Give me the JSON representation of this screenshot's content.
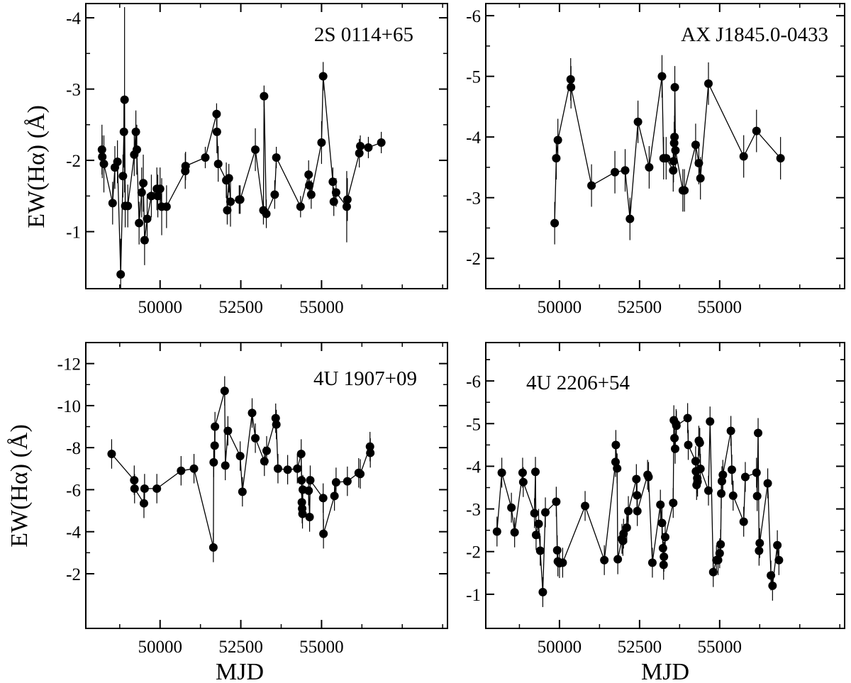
{
  "figure": {
    "ylabel": "EW(Hα) (Å)",
    "xlabel": "MJD"
  },
  "chart_data": [
    {
      "type": "line",
      "title": "2S 0114+65",
      "xlabel": "",
      "ylabel": "EW(Hα) (Å)",
      "xlim": [
        47700,
        58900
      ],
      "ylim": [
        -0.2,
        -4.2
      ],
      "y_inverted": true,
      "xticks": [
        50000,
        52500,
        55000
      ],
      "xtick_labels": [
        "50000",
        "52500",
        "55000"
      ],
      "yticks": [
        -1,
        -2,
        -3,
        -4
      ],
      "ytick_labels": [
        "-1",
        "-2",
        "-3",
        "-4"
      ],
      "series": [
        {
          "x": [
            48200,
            48210,
            48260,
            48530,
            48600,
            48680,
            48780,
            48850,
            48880,
            48900,
            48920,
            49000,
            49200,
            49250,
            49280,
            49350,
            49430,
            49480,
            49520,
            49600,
            49730,
            49900,
            49930,
            50000,
            50050,
            50200,
            50780,
            50790,
            51400,
            51750,
            51760,
            51800,
            52050,
            52080,
            52130,
            52180,
            52450,
            52480,
            52950,
            53200,
            53220,
            53290,
            53550,
            53600,
            54350,
            54600,
            54620,
            54680,
            55000,
            55050,
            55350,
            55380,
            55450,
            55780,
            55800,
            56170,
            56200,
            56450,
            56850
          ],
          "y": [
            -2.15,
            -2.05,
            -1.95,
            -1.4,
            -1.9,
            -1.98,
            -0.4,
            -1.78,
            -2.4,
            -2.85,
            -1.36,
            -1.36,
            -2.08,
            -2.4,
            -2.15,
            -1.12,
            -1.55,
            -1.68,
            -0.88,
            -1.18,
            -1.5,
            -1.6,
            -1.5,
            -1.6,
            -1.35,
            -1.35,
            -1.85,
            -1.92,
            -2.04,
            -2.65,
            -2.4,
            -1.95,
            -1.72,
            -1.3,
            -1.75,
            -1.42,
            -1.45,
            -1.45,
            -2.15,
            -1.3,
            -2.9,
            -1.25,
            -1.52,
            -2.04,
            -1.35,
            -1.8,
            -1.65,
            -1.52,
            -2.25,
            -3.18,
            -1.7,
            -1.42,
            -1.55,
            -1.35,
            -1.45,
            -2.1,
            -2.2,
            -2.18,
            -2.25
          ],
          "err": [
            0.35,
            0.3,
            0.4,
            0.3,
            0.3,
            0.3,
            0.5,
            0.3,
            0.5,
            1.3,
            0.3,
            0.3,
            0.3,
            0.3,
            0.35,
            0.3,
            0.35,
            0.4,
            0.35,
            0.35,
            0.3,
            0.3,
            0.3,
            0.3,
            0.4,
            0.3,
            0.25,
            0.2,
            0.15,
            0.15,
            0.3,
            0.25,
            0.25,
            0.2,
            0.2,
            0.35,
            0.2,
            0.2,
            0.3,
            0.2,
            0.15,
            0.2,
            0.2,
            0.15,
            0.15,
            0.2,
            0.2,
            0.2,
            0.3,
            0.2,
            0.2,
            0.2,
            0.2,
            0.5,
            0.3,
            0.2,
            0.15,
            0.15,
            0.15
          ]
        }
      ]
    },
    {
      "type": "line",
      "title": "AX J1845.0-0433",
      "xlabel": "",
      "ylabel": "",
      "xlim": [
        47700,
        58900
      ],
      "ylim": [
        -1.5,
        -6.2
      ],
      "y_inverted": true,
      "xticks": [
        50000,
        52500,
        55000
      ],
      "xtick_labels": [
        "50000",
        "52500",
        "55000"
      ],
      "yticks": [
        -2,
        -3,
        -4,
        -5,
        -6
      ],
      "ytick_labels": [
        "-2",
        "-3",
        "-4",
        "-5",
        "-6"
      ],
      "series": [
        {
          "x": [
            49850,
            49900,
            49950,
            50350,
            50360,
            51000,
            51730,
            52050,
            52200,
            52450,
            52800,
            53200,
            53250,
            53330,
            53550,
            53560,
            53580,
            53590,
            53600,
            53620,
            53850,
            53900,
            54250,
            54350,
            54400,
            54650,
            55750,
            56150,
            56900
          ],
          "y": [
            -2.58,
            -3.65,
            -3.95,
            -4.95,
            -4.82,
            -3.2,
            -3.42,
            -3.45,
            -2.65,
            -4.25,
            -3.5,
            -5.0,
            -3.65,
            -3.65,
            -3.45,
            -3.6,
            -3.9,
            -4.0,
            -4.82,
            -3.78,
            -3.12,
            -3.12,
            -3.87,
            -3.57,
            -3.32,
            -4.88,
            -3.68,
            -4.1,
            -3.65
          ]
        }
      ]
    },
    {
      "type": "line",
      "title": "4U 1907+09",
      "xlabel": "MJD",
      "ylabel": "EW(Hα) (Å)",
      "xlim": [
        47700,
        58900
      ],
      "ylim": [
        0.6,
        -13.0
      ],
      "y_inverted": true,
      "xticks": [
        50000,
        52500,
        55000
      ],
      "xtick_labels": [
        "50000",
        "52500",
        "55000"
      ],
      "yticks": [
        -2,
        -4,
        -6,
        -8,
        -10,
        -12
      ],
      "ytick_labels": [
        "-2",
        "-4",
        "-6",
        "-8",
        "-10",
        "-12"
      ],
      "series": [
        {
          "x": [
            48500,
            49200,
            49210,
            49500,
            49520,
            49900,
            50650,
            51050,
            51650,
            51660,
            51690,
            51700,
            52000,
            52020,
            52100,
            52480,
            52550,
            52850,
            52950,
            53230,
            53300,
            53580,
            53600,
            53650,
            53950,
            54250,
            54370,
            54380,
            54390,
            54400,
            54410,
            54420,
            54600,
            54630,
            54650,
            55050,
            55060,
            55400,
            55450,
            55800,
            56150,
            56200,
            56500,
            56510
          ],
          "y": [
            -7.7,
            -6.45,
            -6.05,
            -5.35,
            -6.05,
            -6.05,
            -6.9,
            -7.0,
            -3.25,
            -7.3,
            -8.1,
            -9.0,
            -10.7,
            -7.15,
            -8.8,
            -7.6,
            -5.9,
            -9.65,
            -8.45,
            -7.35,
            -7.85,
            -9.4,
            -9.1,
            -7.0,
            -6.95,
            -7.0,
            -7.7,
            -6.45,
            -5.4,
            -5.1,
            -4.85,
            -6.0,
            -5.95,
            -4.7,
            -6.45,
            -5.6,
            -3.9,
            -5.7,
            -6.35,
            -6.4,
            -6.8,
            -6.75,
            -8.05,
            -7.75
          ]
        }
      ]
    },
    {
      "type": "line",
      "title": "4U 2206+54",
      "xlabel": "MJD",
      "ylabel": "",
      "xlim": [
        47700,
        58900
      ],
      "ylim": [
        -0.2,
        -6.9
      ],
      "y_inverted": true,
      "xticks": [
        50000,
        52500,
        55000
      ],
      "xtick_labels": [
        "50000",
        "52500",
        "55000"
      ],
      "yticks": [
        -1,
        -2,
        -3,
        -4,
        -5,
        -6
      ],
      "ytick_labels": [
        "-1",
        "-2",
        "-3",
        "-4",
        "-5",
        "-6"
      ],
      "series": [
        {
          "x": [
            48050,
            48200,
            48500,
            48600,
            48850,
            48870,
            49220,
            49250,
            49270,
            49350,
            49400,
            49480,
            49560,
            49900,
            49930,
            49950,
            50000,
            50100,
            50800,
            51400,
            51750,
            51760,
            51800,
            51820,
            51950,
            51980,
            52000,
            52100,
            52150,
            52400,
            52420,
            52430,
            52750,
            52780,
            52900,
            53150,
            53200,
            53230,
            53250,
            53260,
            53300,
            53550,
            53570,
            53590,
            53610,
            53640,
            53650,
            54000,
            54020,
            54250,
            54260,
            54280,
            54300,
            54310,
            54350,
            54380,
            54400,
            54650,
            54700,
            54800,
            54900,
            54950,
            55000,
            55030,
            55050,
            55070,
            55100,
            55350,
            55380,
            55420,
            55750,
            55800,
            56150,
            56170,
            56200,
            56230,
            56250,
            56500,
            56600,
            56650,
            56800,
            56850
          ],
          "y": [
            -2.47,
            -3.85,
            -3.03,
            -2.45,
            -3.85,
            -3.63,
            -2.9,
            -3.87,
            -2.39,
            -2.65,
            -2.02,
            -1.05,
            -2.92,
            -3.17,
            -2.03,
            -1.77,
            -1.73,
            -1.74,
            -3.07,
            -1.8,
            -4.1,
            -4.5,
            -3.95,
            -1.82,
            -2.3,
            -2.25,
            -2.42,
            -2.56,
            -2.95,
            -3.7,
            -3.32,
            -2.95,
            -3.8,
            -3.75,
            -1.74,
            -3.1,
            -2.67,
            -2.08,
            -1.69,
            -1.88,
            -2.34,
            -3.14,
            -5.08,
            -4.66,
            -4.41,
            -4.99,
            -4.95,
            -5.13,
            -4.5,
            -4.12,
            -3.88,
            -3.56,
            -3.72,
            -3.64,
            -4.6,
            -4.55,
            -3.94,
            -3.43,
            -5.05,
            -1.52,
            -1.8,
            -1.8,
            -1.96,
            -2.17,
            -3.36,
            -3.65,
            -3.8,
            -4.83,
            -3.92,
            -3.31,
            -2.7,
            -3.75,
            -3.85,
            -3.3,
            -4.78,
            -2.02,
            -2.2,
            -3.6,
            -1.44,
            -1.2,
            -2.15,
            -1.8
          ]
        }
      ]
    }
  ]
}
